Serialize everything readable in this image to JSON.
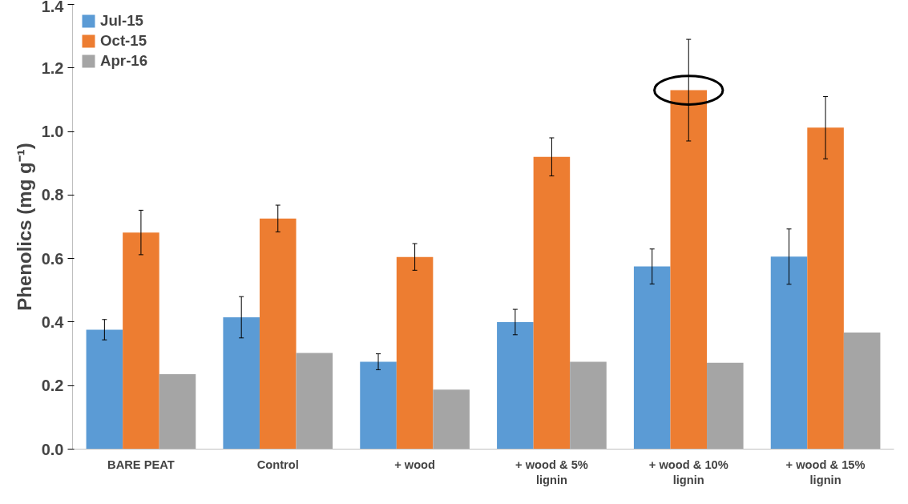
{
  "chart_data": {
    "type": "bar",
    "ylabel": "Phenolics (mg g⁻¹)",
    "categories": [
      "BARE PEAT",
      "Control",
      "+ wood",
      "+ wood & 5% lignin",
      "+ wood & 10% lignin",
      "+ wood & 15% lignin"
    ],
    "series": [
      {
        "name": "Jul-15",
        "color": "#5b9bd5",
        "values": [
          0.376,
          0.415,
          0.275,
          0.4,
          0.575,
          0.606
        ],
        "errors": [
          0.032,
          0.065,
          0.025,
          0.04,
          0.055,
          0.087
        ]
      },
      {
        "name": "Oct-15",
        "color": "#ed7d31",
        "values": [
          0.682,
          0.726,
          0.605,
          0.92,
          1.13,
          1.012
        ],
        "errors": [
          0.07,
          0.042,
          0.042,
          0.06,
          0.16,
          0.098
        ]
      },
      {
        "name": "Apr-16",
        "color": "#a5a5a5",
        "values": [
          0.236,
          0.303,
          0.187,
          0.275,
          0.272,
          0.367
        ]
      }
    ],
    "ylim": [
      0,
      1.4
    ],
    "yticks": [
      {
        "value": 0,
        "label": "0.0"
      },
      {
        "value": 0.2,
        "label": "0.2"
      },
      {
        "value": 0.4,
        "label": "0.4"
      },
      {
        "value": 0.6,
        "label": "0.6"
      },
      {
        "value": 0.8,
        "label": "0.8"
      },
      {
        "value": 1.0,
        "label": "1.0"
      },
      {
        "value": 1.2,
        "label": "1.2"
      },
      {
        "value": 1.4,
        "label": "1.4"
      }
    ],
    "grid": false,
    "legend": "top left"
  }
}
